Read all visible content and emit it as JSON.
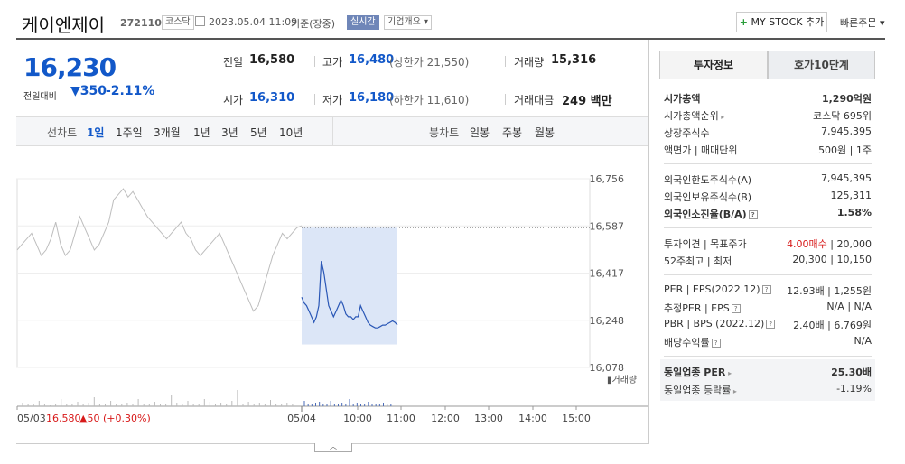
{
  "header": {
    "name": "케이엔제이",
    "code": "272110",
    "market": "코스닥",
    "datetime": "2023.05.04 11:09",
    "basis": "기준(장중)",
    "realtime": "실시간",
    "company_info": "기업개요",
    "my_stock": "MY STOCK 추가",
    "quick_order": "빠른주문"
  },
  "summary": {
    "price": "16,230",
    "change_label": "전일대비",
    "change": "350",
    "change_pct": "-2.11%",
    "prev_label": "전일",
    "prev": "16,580",
    "high_label": "고가",
    "high": "16,480",
    "upper_limit": "(상한가 21,550)",
    "volume_label": "거래량",
    "volume": "15,316",
    "open_label": "시가",
    "open": "16,310",
    "low_label": "저가",
    "low": "16,180",
    "lower_limit": "(하한가 11,610)",
    "amount_label": "거래대금",
    "amount": "249 백만"
  },
  "tabs": {
    "line_chart": "선차트",
    "periods": [
      "1일",
      "1주일",
      "3개월",
      "1년",
      "3년",
      "5년",
      "10년"
    ],
    "candle_chart": "봉차트",
    "candles": [
      "일봉",
      "주봉",
      "월봉"
    ]
  },
  "chart_data": {
    "type": "line",
    "title": "",
    "y_ticks": [
      "16,756",
      "16,587",
      "16,417",
      "16,248",
      "16,078"
    ],
    "ylim": [
      16078,
      16756
    ],
    "x_ticks": [
      "05/03",
      "05/04",
      "10:00",
      "11:00",
      "12:00",
      "13:00",
      "14:00",
      "15:00"
    ],
    "prev_day_note": {
      "date": "05/03",
      "price": "16,580",
      "change": "50",
      "pct": "(+0.30%)"
    },
    "volume_label": "거래량",
    "series": [
      {
        "values": [
          16500,
          16520,
          16540,
          16560,
          16520,
          16480,
          16500,
          16540,
          16600,
          16520,
          16480,
          16500,
          16560,
          16620,
          16580,
          16540,
          16500,
          16520,
          16560,
          16600,
          16680,
          16700,
          16720,
          16690,
          16710,
          16680,
          16650,
          16620,
          16600,
          16580,
          16560,
          16540,
          16560,
          16580,
          16600,
          16560,
          16540,
          16500,
          16480,
          16500,
          16520,
          16540,
          16560,
          16520,
          16480,
          16440,
          16400,
          16360,
          16320,
          16280,
          16300,
          16360,
          16420,
          16480,
          16520,
          16560,
          16540,
          16560,
          16580,
          16587
        ]
      },
      {
        "values": [
          16330,
          16310,
          16300,
          16280,
          16260,
          16240,
          16260,
          16300,
          16460,
          16420,
          16360,
          16300,
          16280,
          16260,
          16280,
          16300,
          16320,
          16300,
          16270,
          16260,
          16260,
          16250,
          16260,
          16260,
          16300,
          16280,
          16260,
          16240,
          16230,
          16225,
          16220,
          16220,
          16225,
          16230,
          16230,
          16235,
          16240,
          16245,
          16240,
          16230
        ]
      }
    ]
  },
  "invest": {
    "tab1": "투자정보",
    "tab2": "호가10단계",
    "rows": [
      {
        "k": "시가총액",
        "v": "1,290억원"
      },
      {
        "k": "시가총액순위",
        "v": "코스닥 695위"
      },
      {
        "k": "상장주식수",
        "v": "7,945,395"
      },
      {
        "k": "액면가 | 매매단위",
        "v": "500원 | 1주"
      },
      {
        "k": "외국인한도주식수(A)",
        "v": "7,945,395"
      },
      {
        "k": "외국인보유주식수(B)",
        "v": "125,311"
      },
      {
        "k": "외국인소진율(B/A)",
        "v": "1.58%"
      },
      {
        "k": "투자의견 | 목표주가",
        "v_red": "4.00매수",
        "v": " | 20,000"
      },
      {
        "k": "52주최고 | 최저",
        "v": "20,300 | 10,150"
      },
      {
        "k": "PER | EPS(2022.12)",
        "v": "12.93배 | 1,255원"
      },
      {
        "k": "추정PER | EPS",
        "v": "N/A | N/A"
      },
      {
        "k": "PBR | BPS (2022.12)",
        "v": "2.40배 | 6,769원"
      },
      {
        "k": "배당수익률",
        "v": "N/A"
      },
      {
        "k": "동일업종 PER",
        "v": "25.30배"
      },
      {
        "k": "동일업종 등락률",
        "v": "-1.19%"
      }
    ]
  },
  "colors": {
    "price_blue": "#1258c9",
    "up_red": "#d81a1a",
    "line_gray": "#bdbdbd",
    "line_blue": "#2a57b6",
    "area": "#dce6f7"
  }
}
